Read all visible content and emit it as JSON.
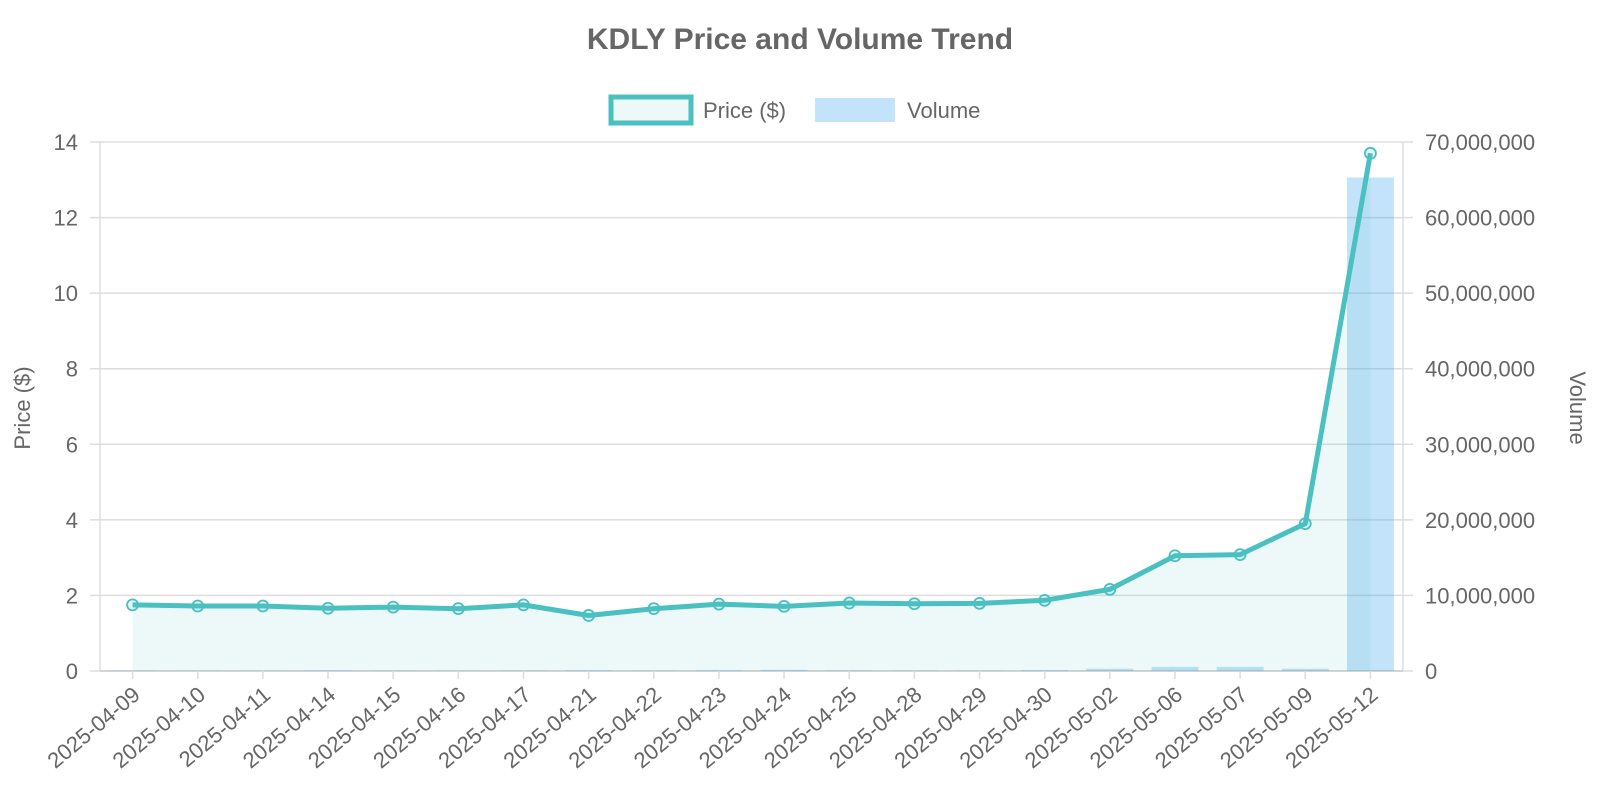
{
  "chart_data": {
    "type": "line",
    "title": "KDLY Price and Volume Trend",
    "categories": [
      "2025-04-09",
      "2025-04-10",
      "2025-04-11",
      "2025-04-14",
      "2025-04-15",
      "2025-04-16",
      "2025-04-17",
      "2025-04-21",
      "2025-04-22",
      "2025-04-23",
      "2025-04-24",
      "2025-04-25",
      "2025-04-28",
      "2025-04-29",
      "2025-04-30",
      "2025-05-02",
      "2025-05-06",
      "2025-05-07",
      "2025-05-09",
      "2025-05-12"
    ],
    "y_left": {
      "label": "Price ($)",
      "ylim": [
        0,
        14
      ],
      "ticks": [
        0,
        2,
        4,
        6,
        8,
        10,
        12,
        14
      ]
    },
    "y_right": {
      "label": "Volume",
      "ylim": [
        0,
        70000000
      ],
      "ticks": [
        "0",
        "10,000,000",
        "20,000,000",
        "30,000,000",
        "40,000,000",
        "50,000,000",
        "60,000,000",
        "70,000,000"
      ]
    },
    "series": [
      {
        "name": "Price ($)",
        "type": "line",
        "axis": "left",
        "color": "#4bc0c0",
        "values": [
          1.75,
          1.72,
          1.72,
          1.66,
          1.69,
          1.65,
          1.75,
          1.47,
          1.65,
          1.77,
          1.71,
          1.8,
          1.78,
          1.79,
          1.87,
          2.16,
          3.05,
          3.08,
          3.9,
          13.7
        ]
      },
      {
        "name": "Volume",
        "type": "bar",
        "axis": "right",
        "color": "#36a2eb",
        "values": [
          60000,
          40000,
          30000,
          80000,
          50000,
          40000,
          60000,
          90000,
          50000,
          100000,
          150000,
          70000,
          60000,
          50000,
          110000,
          300000,
          550000,
          550000,
          300000,
          65300000
        ]
      }
    ],
    "legend": {
      "position": "top",
      "items": [
        "Price ($)",
        "Volume"
      ]
    },
    "grid": true
  }
}
